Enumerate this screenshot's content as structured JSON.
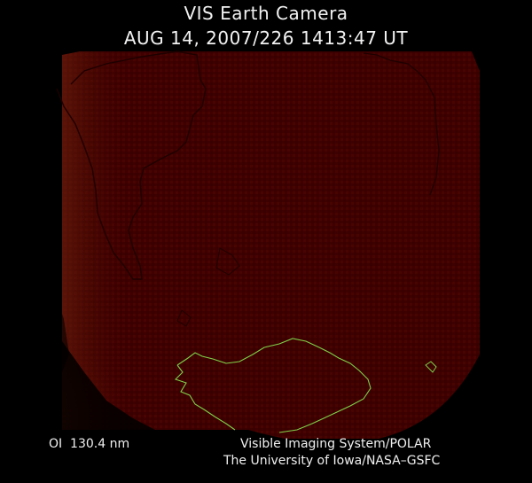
{
  "header": {
    "title": "VIS Earth Camera",
    "timestamp": "AUG 14, 2007/226 1413:47 UT"
  },
  "footer": {
    "wavelength": "OI  130.4 nm",
    "credit_line1": "Visible Imaging System/POLAR",
    "credit_line2": "The University of Iowa/NASA–GSFC"
  },
  "colors": {
    "background": "#000000",
    "disk_fill": "#3f0000",
    "aurora_glow": "#c0501a",
    "coastline_dark": "#1a0000",
    "coastline_antarctica": "#7fd04a"
  }
}
